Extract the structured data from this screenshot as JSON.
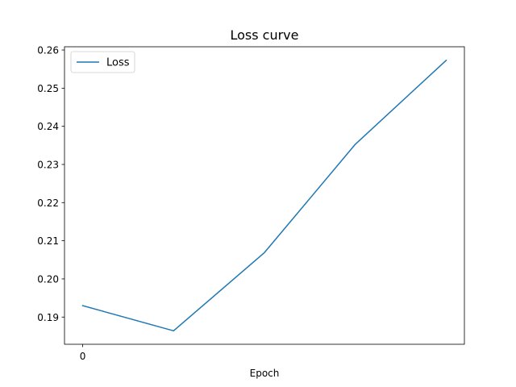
{
  "chart_data": {
    "type": "line",
    "title": "Loss curve",
    "xlabel": "Epoch",
    "ylabel": "",
    "x": [
      0,
      1,
      2,
      3,
      4
    ],
    "series": [
      {
        "name": "Loss",
        "values": [
          0.193,
          0.1864,
          0.2069,
          0.2353,
          0.2573
        ],
        "color": "#1f77b4"
      }
    ],
    "xticks": [
      {
        "value": 0,
        "label": "0"
      }
    ],
    "yticks": [
      {
        "value": 0.19,
        "label": "0.19"
      },
      {
        "value": 0.2,
        "label": "0.20"
      },
      {
        "value": 0.21,
        "label": "0.21"
      },
      {
        "value": 0.22,
        "label": "0.22"
      },
      {
        "value": 0.23,
        "label": "0.23"
      },
      {
        "value": 0.24,
        "label": "0.24"
      },
      {
        "value": 0.25,
        "label": "0.25"
      },
      {
        "value": 0.26,
        "label": "0.26"
      }
    ],
    "xlim": [
      -0.2,
      4.2
    ],
    "ylim": [
      0.18287,
      0.26085
    ],
    "grid": false,
    "legend_position": "top-left"
  }
}
